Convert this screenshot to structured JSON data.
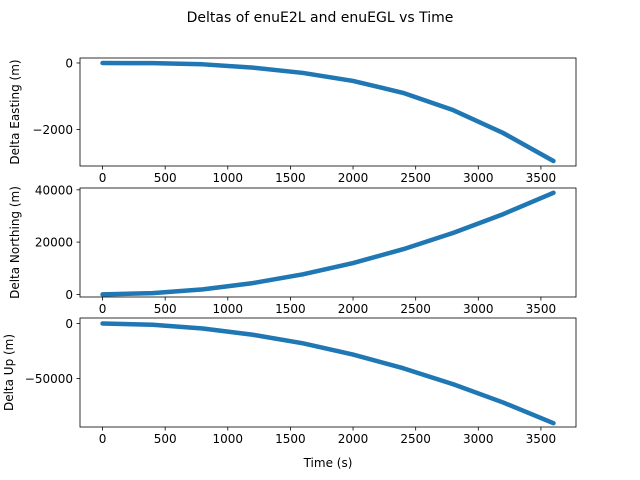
{
  "chart_data": [
    {
      "type": "line",
      "title": "Deltas of enuE2L and enuEGL vs Time",
      "xlabel": "",
      "ylabel": "Delta Easting (m)",
      "xlim": [
        -180,
        3780
      ],
      "ylim": [
        -3100,
        150
      ],
      "xticks": [
        0,
        500,
        1000,
        1500,
        2000,
        2500,
        3000,
        3500
      ],
      "xtick_labels": [
        "0",
        "500",
        "1000",
        "1500",
        "2000",
        "2500",
        "3000",
        "3500"
      ],
      "yticks": [
        0,
        -2000
      ],
      "ytick_labels": [
        "0",
        "−2000"
      ],
      "series": [
        {
          "color": "#1f77b4",
          "x": [
            0,
            400,
            800,
            1200,
            1600,
            2000,
            2400,
            2800,
            3200,
            3600
          ],
          "y": [
            0,
            -6,
            -40,
            -140,
            -300,
            -540,
            -900,
            -1420,
            -2110,
            -2950
          ]
        }
      ]
    },
    {
      "type": "line",
      "xlabel": "",
      "ylabel": "Delta Northing (m)",
      "xlim": [
        -180,
        3780
      ],
      "ylim": [
        -1000,
        40700
      ],
      "xticks": [
        0,
        500,
        1000,
        1500,
        2000,
        2500,
        3000,
        3500
      ],
      "xtick_labels": [
        "0",
        "500",
        "1000",
        "1500",
        "2000",
        "2500",
        "3000",
        "3500"
      ],
      "yticks": [
        0,
        20000,
        40000
      ],
      "ytick_labels": [
        "0",
        "20000",
        "40000"
      ],
      "series": [
        {
          "color": "#1f77b4",
          "x": [
            0,
            400,
            800,
            1200,
            1600,
            2000,
            2400,
            2800,
            3200,
            3600
          ],
          "y": [
            0,
            480,
            1920,
            4320,
            7680,
            12000,
            17280,
            23520,
            30720,
            38880
          ]
        }
      ]
    },
    {
      "type": "line",
      "xlabel": "Time (s)",
      "ylabel": "Delta Up (m)",
      "xlim": [
        -180,
        3780
      ],
      "ylim": [
        -94000,
        5000
      ],
      "xticks": [
        0,
        500,
        1000,
        1500,
        2000,
        2500,
        3000,
        3500
      ],
      "xtick_labels": [
        "0",
        "500",
        "1000",
        "1500",
        "2000",
        "2500",
        "3000",
        "3500"
      ],
      "yticks": [
        0,
        -50000
      ],
      "ytick_labels": [
        "0",
        "−50000"
      ],
      "series": [
        {
          "color": "#1f77b4",
          "x": [
            0,
            400,
            800,
            1200,
            1600,
            2000,
            2400,
            2800,
            3200,
            3600
          ],
          "y": [
            0,
            -1100,
            -4500,
            -10200,
            -18000,
            -28200,
            -40600,
            -55200,
            -71800,
            -90500
          ]
        }
      ]
    }
  ]
}
